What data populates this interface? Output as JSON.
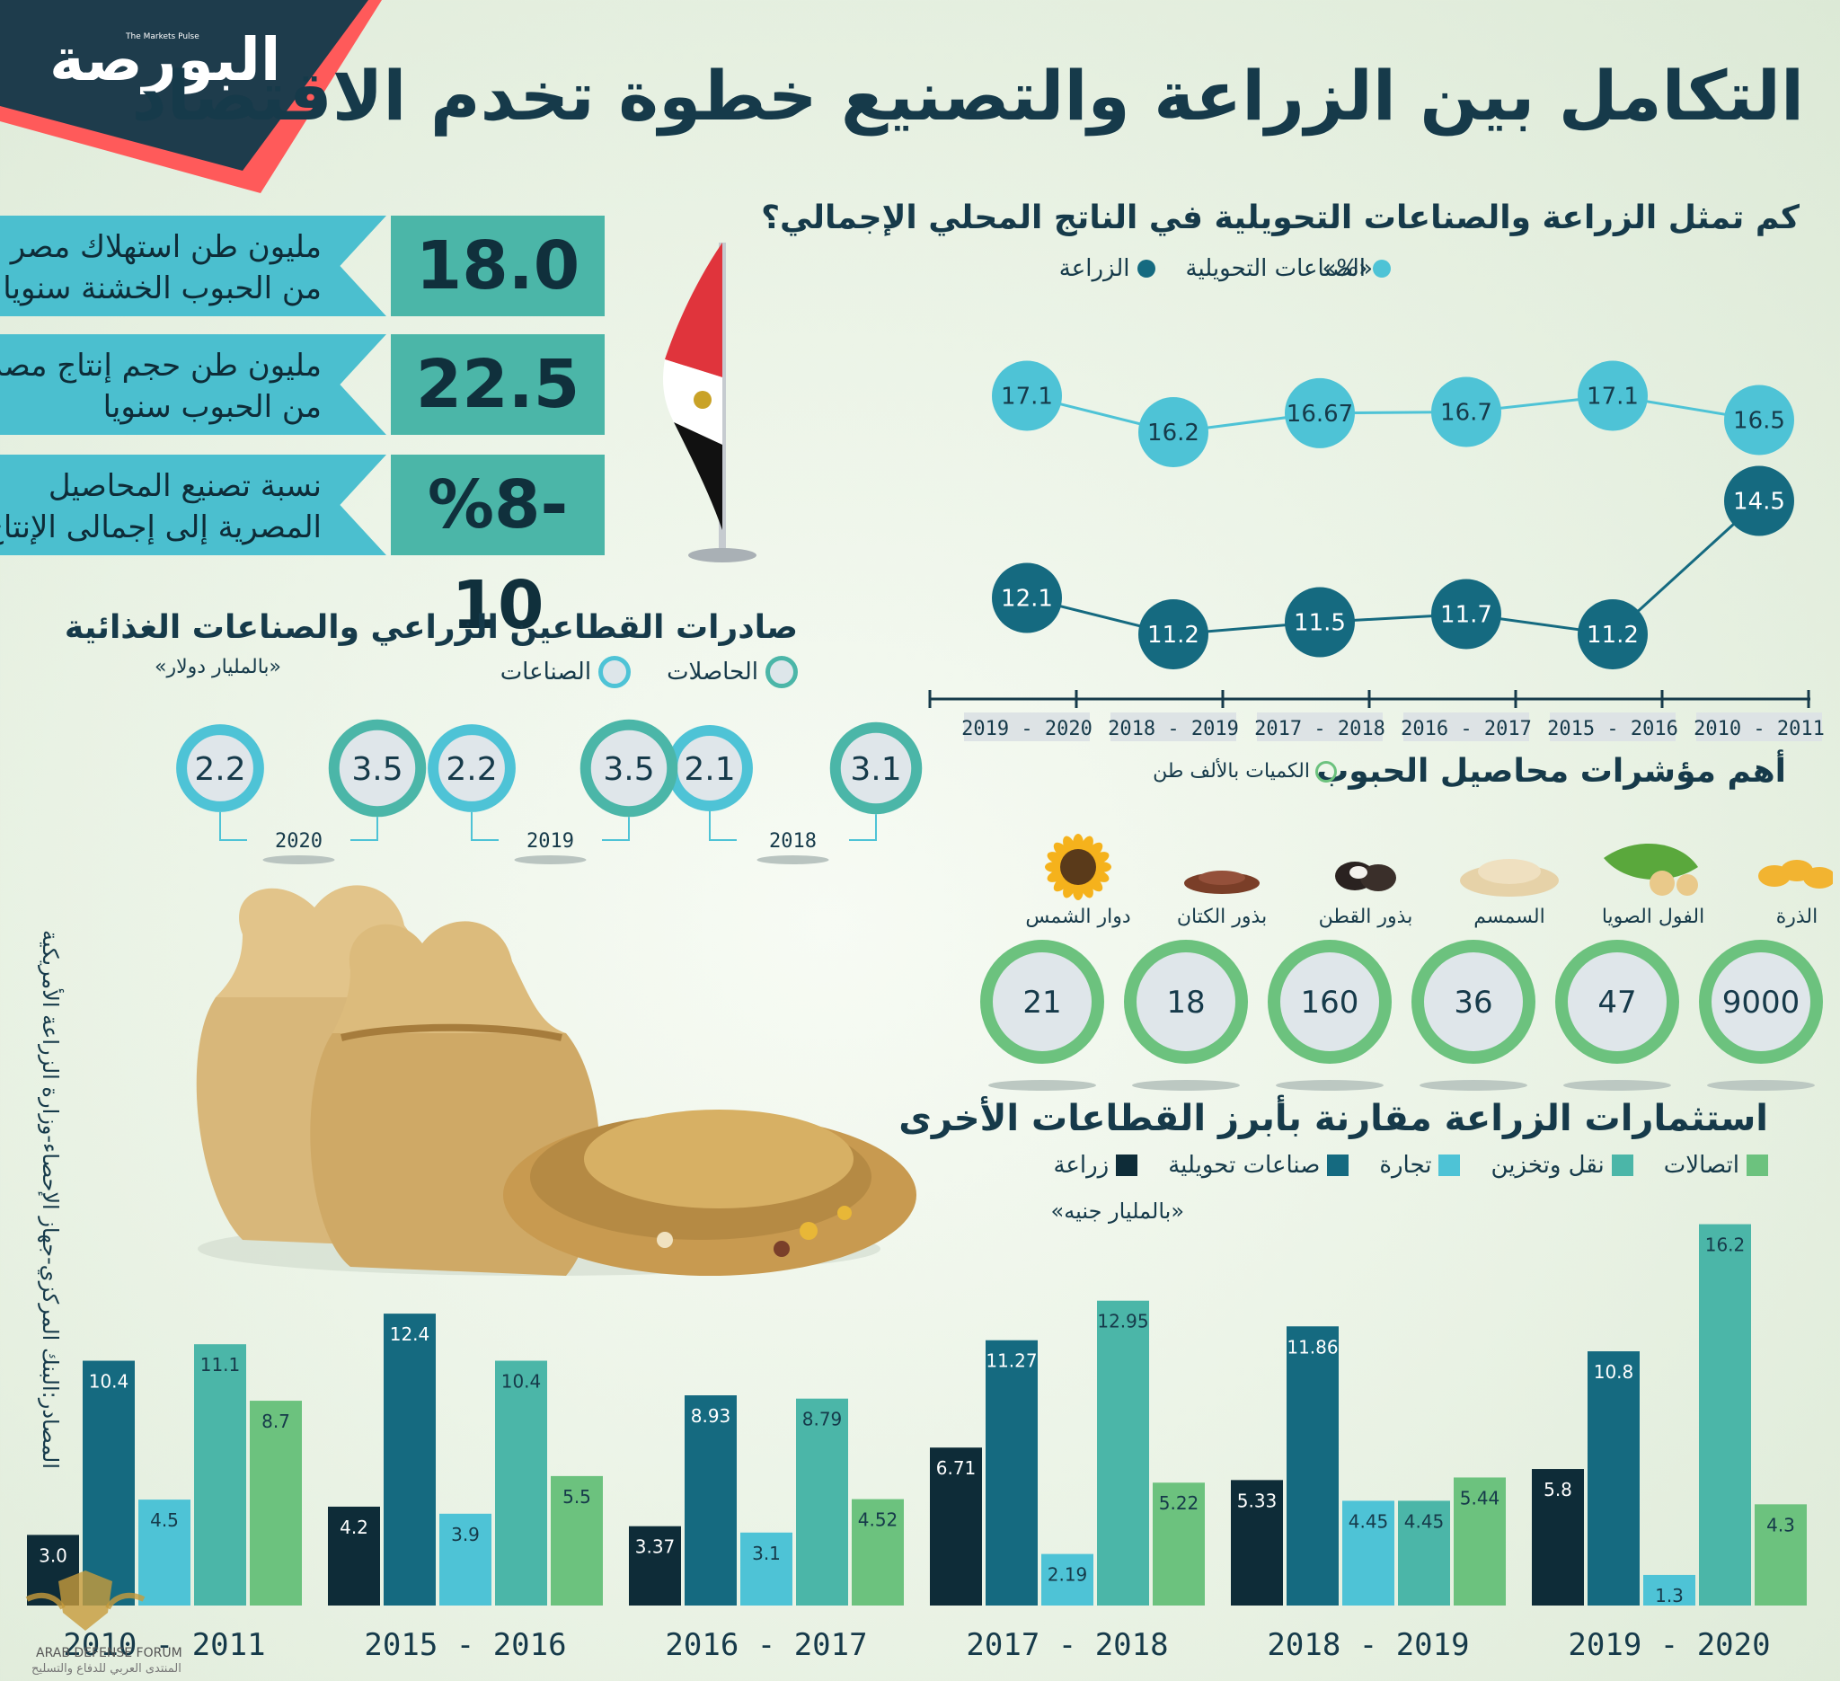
{
  "brand": {
    "logo_text": "البورصة",
    "logo_sub": "The Markets Pulse",
    "accent": "#ff5a5a",
    "dark": "#163a4a"
  },
  "title": "التكامل بين الزراعة والتصنيع خطوة تخدم الاقتصاد",
  "stats": [
    {
      "label": "مليون طن استهلاك مصر\nمن الحبوب الخشنة سنويا",
      "value": "18.0"
    },
    {
      "label": "مليون طن حجم إنتاج مصر\nمن الحبوب سنويا",
      "value": "22.5"
    },
    {
      "label": "نسبة تصنيع المحاصيل\nالمصرية إلى إجمالى الإنتاج",
      "value": "%8-10"
    }
  ],
  "source": "المصادر:البنك المركزي-جهاز الإحصاء-وزارة الزراعة الأمريكية",
  "watermark": {
    "line1": "ARAB DEFENSE FORUM",
    "line2": "المنتدى العربي للدفاع والتسليح"
  },
  "chart_data": [
    {
      "type": "line",
      "title": "كم تمثل الزراعة والصناعات التحويلية في الناتج المحلي الإجمالي؟",
      "unit": "«%»",
      "categories": [
        "2010 - 2011",
        "2015 - 2016",
        "2016 - 2017",
        "2017 - 2018",
        "2018 - 2019",
        "2019 - 2020"
      ],
      "series": [
        {
          "name": "الصناعات التحويلية",
          "color": "#4ec3d6",
          "values": [
            16.5,
            17.1,
            16.7,
            16.67,
            16.2,
            17.1
          ]
        },
        {
          "name": "الزراعة",
          "color": "#156a80",
          "values": [
            14.5,
            11.2,
            11.7,
            11.5,
            11.2,
            12.1
          ]
        }
      ]
    },
    {
      "type": "bubble",
      "title": "صادرات القطاعين الزراعي والصناعات الغذائية",
      "unit": "«بالمليار دولار»",
      "legend": [
        {
          "name": "الحاصلات",
          "color": "#4bb6a8"
        },
        {
          "name": "الصناعات",
          "color": "#4ec3d6"
        }
      ],
      "years": [
        "2018",
        "2019",
        "2020"
      ],
      "series": [
        {
          "name": "الحاصلات",
          "values": [
            3.1,
            3.5,
            3.5
          ]
        },
        {
          "name": "الصناعات",
          "values": [
            2.1,
            2.2,
            2.2
          ]
        }
      ]
    },
    {
      "type": "bubble",
      "title": "أهم مؤشرات محاصيل الحبوب",
      "unit": "الكميات بالألف طن",
      "categories": [
        "الذرة",
        "الفول الصويا",
        "السمسم",
        "بذور القطن",
        "بذور الكتان",
        "دوار الشمس"
      ],
      "values": [
        9000,
        47,
        36,
        160,
        18,
        21
      ]
    },
    {
      "type": "bar",
      "title": "استثمارات الزراعة مقارنة بأبرز القطاعات الأخرى",
      "unit": "«بالمليار جنيه»",
      "categories": [
        "2010 - 2011",
        "2015 - 2016",
        "2016 - 2017",
        "2017 - 2018",
        "2018 - 2019",
        "2019 - 2020"
      ],
      "series": [
        {
          "name": "زراعة",
          "color": "#0e2c38",
          "values": [
            3.0,
            4.2,
            3.37,
            6.71,
            5.33,
            5.8
          ]
        },
        {
          "name": "صناعات تحويلية",
          "color": "#156a80",
          "values": [
            10.4,
            12.4,
            8.93,
            11.27,
            11.86,
            10.8
          ]
        },
        {
          "name": "تجارة",
          "color": "#4ec3d6",
          "values": [
            4.5,
            3.9,
            3.1,
            2.19,
            4.45,
            1.3
          ]
        },
        {
          "name": "نقل وتخزين",
          "color": "#4bb6a8",
          "values": [
            11.1,
            10.4,
            8.79,
            12.95,
            4.45,
            16.2
          ]
        },
        {
          "name": "اتصالات",
          "color": "#6cc27e",
          "values": [
            8.7,
            5.5,
            4.52,
            5.22,
            5.44,
            4.3
          ]
        }
      ],
      "labels": [
        [
          "3.0",
          "4.2",
          "3.37",
          "6.71",
          "5.33",
          "5.8"
        ],
        [
          "10.4",
          "12.4",
          "8.93",
          "11.27",
          "11.86",
          "10.8"
        ],
        [
          "4.5",
          "3.9",
          "3.1",
          "2.19",
          "4.45",
          "1.3"
        ],
        [
          "11.1",
          "10.4",
          "8.79",
          "12.95",
          "4.45",
          "16.2"
        ],
        [
          "8.7",
          "5.5",
          "4.52",
          "5.22",
          "5.44",
          "4.3"
        ]
      ]
    }
  ]
}
